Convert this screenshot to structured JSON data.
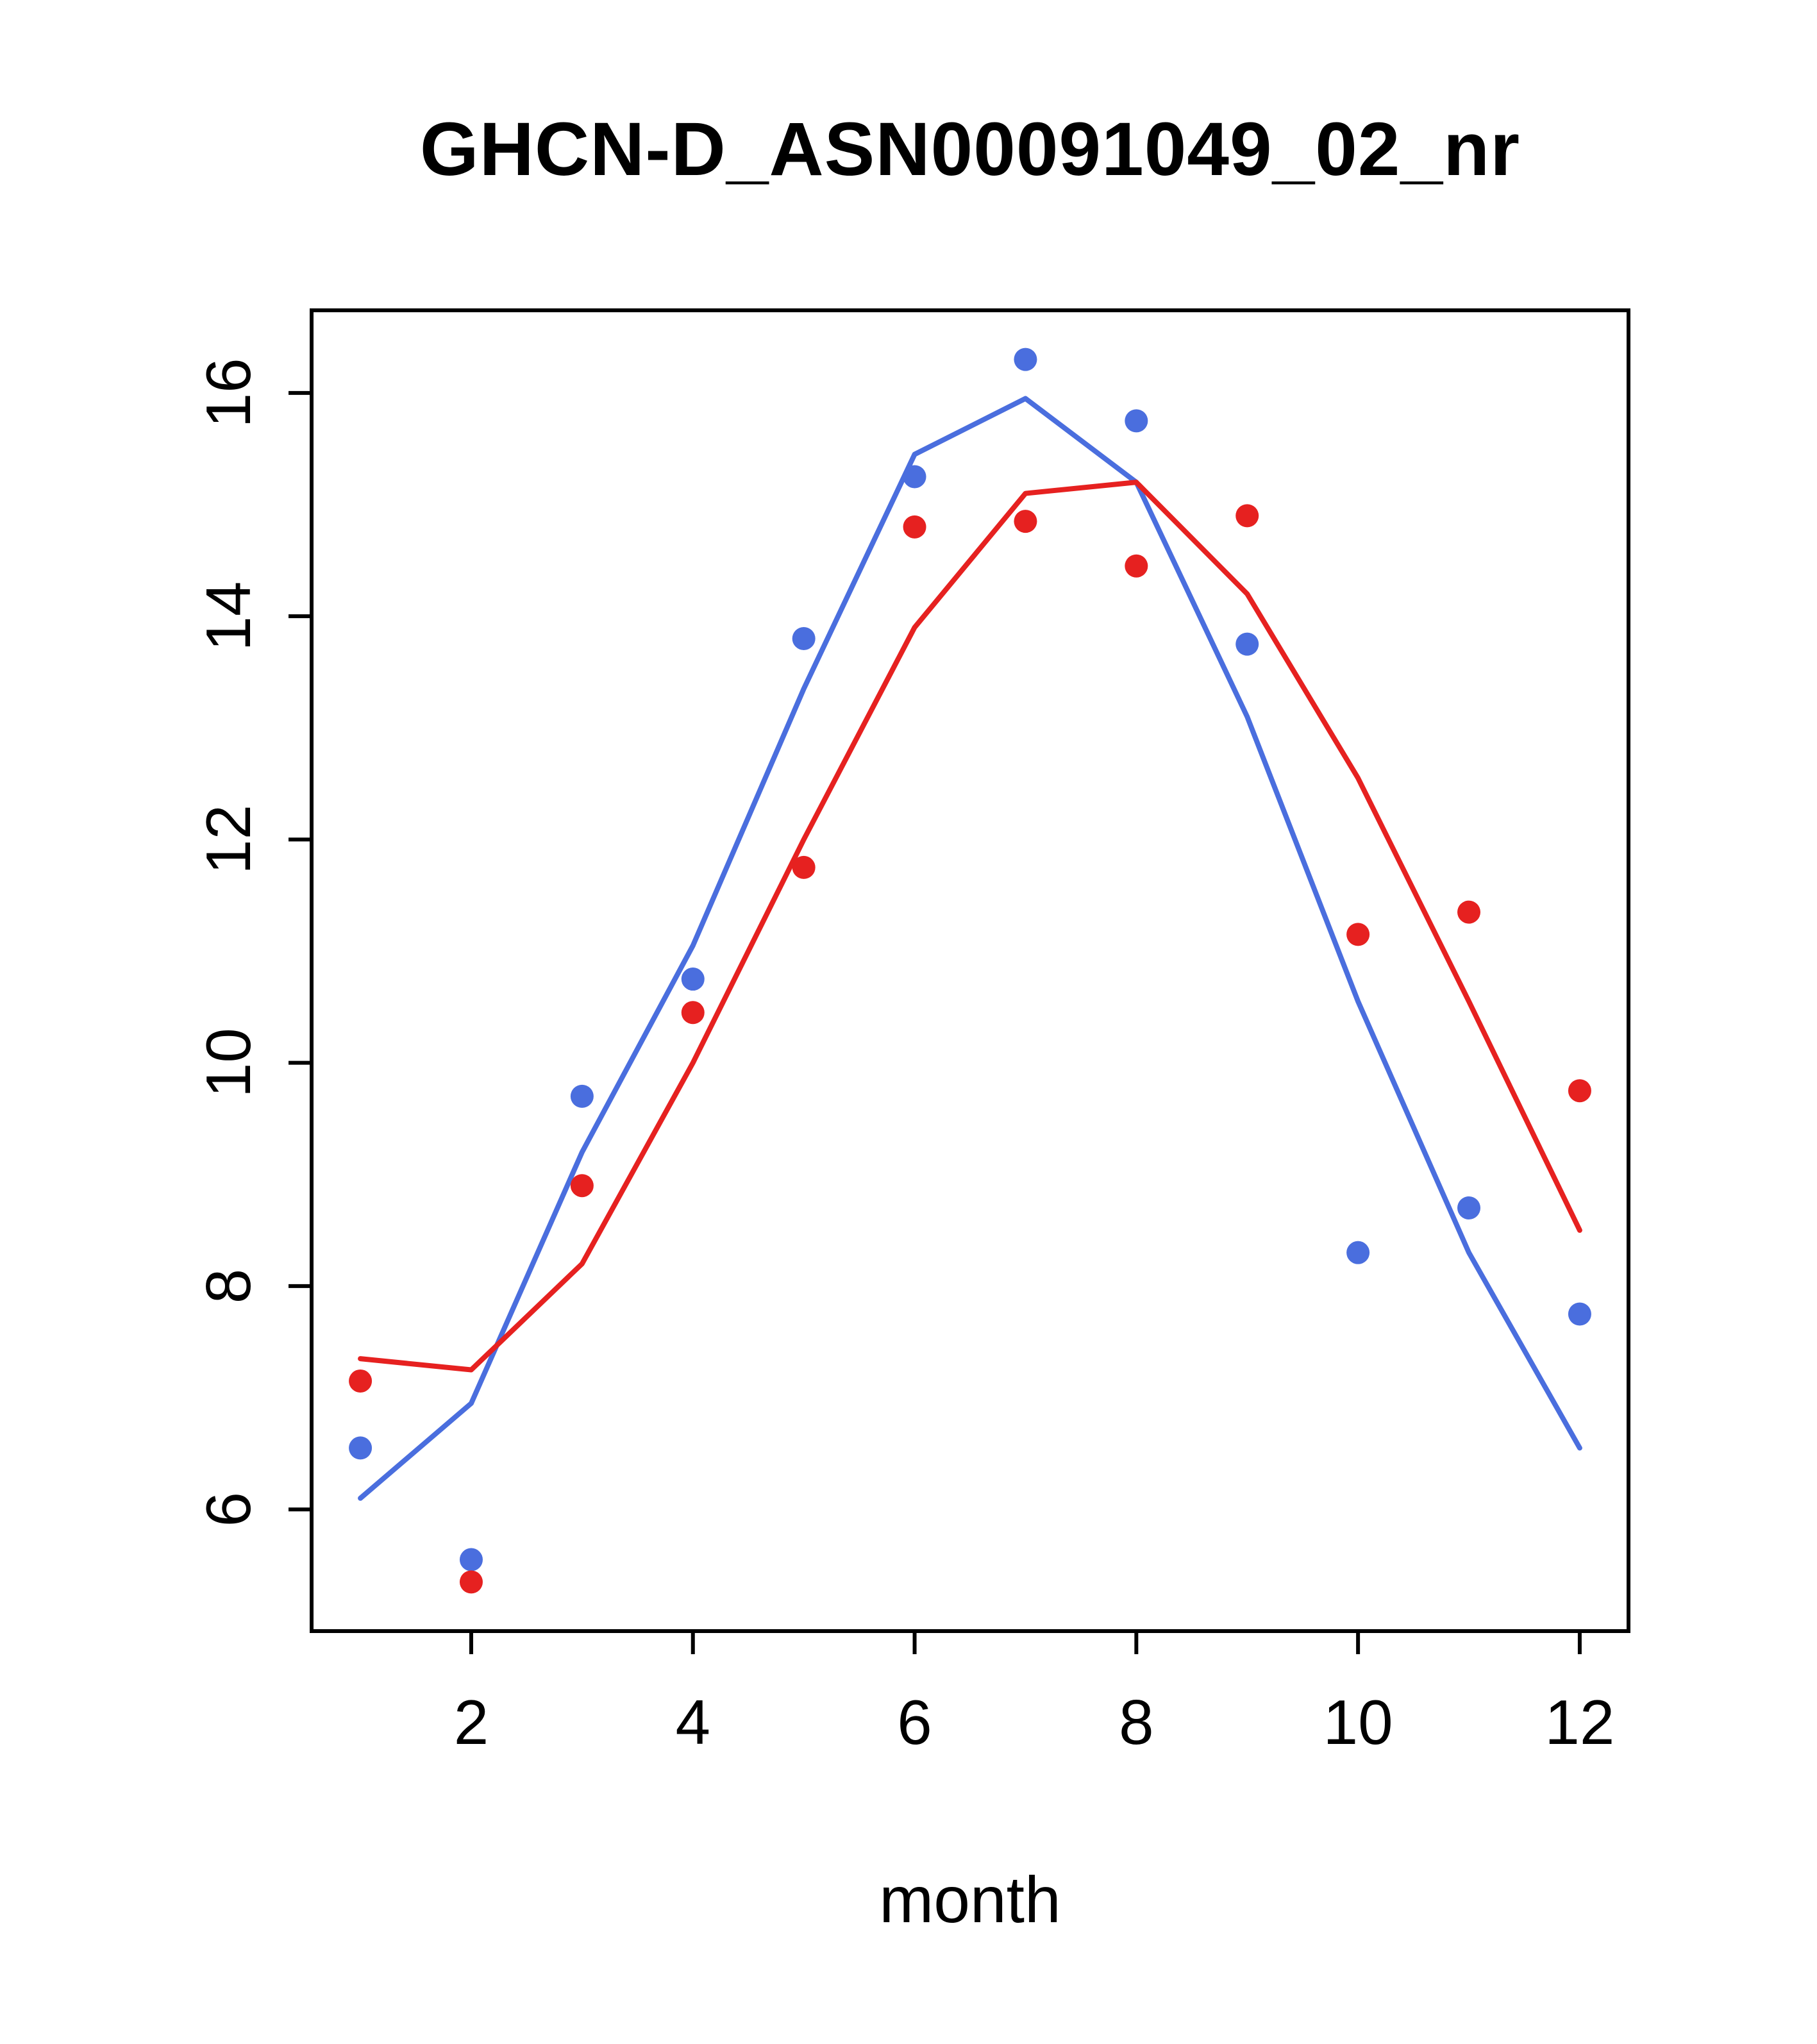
{
  "chart_data": {
    "type": "scatter",
    "title": "GHCN-D_ASN00091049_02_nr",
    "xlabel": "month",
    "ylabel": "",
    "xlim": [
      0.56,
      12.44
    ],
    "ylim": [
      4.91,
      16.74
    ],
    "x_ticks": [
      2,
      4,
      6,
      8,
      10,
      12
    ],
    "y_ticks": [
      6,
      8,
      10,
      12,
      14,
      16
    ],
    "x": [
      1,
      2,
      3,
      4,
      5,
      6,
      7,
      8,
      9,
      10,
      11,
      12
    ],
    "colors": {
      "blue": "#4a6ede",
      "red": "#e62120",
      "axis": "#000000"
    },
    "series": [
      {
        "name": "blue-line",
        "type": "line",
        "color": "#4a6ede",
        "values": [
          6.1,
          6.95,
          9.2,
          11.05,
          13.35,
          15.45,
          15.95,
          15.2,
          13.1,
          10.55,
          8.3,
          6.55
        ]
      },
      {
        "name": "red-line",
        "type": "line",
        "color": "#e62120",
        "values": [
          7.35,
          7.25,
          8.2,
          10.0,
          12.0,
          13.9,
          15.1,
          15.2,
          14.2,
          12.55,
          10.55,
          8.5
        ]
      },
      {
        "name": "blue-points",
        "type": "points",
        "color": "#4a6ede",
        "values": [
          6.55,
          5.55,
          9.7,
          10.75,
          13.8,
          15.25,
          16.3,
          15.75,
          13.75,
          8.3,
          8.7,
          7.75
        ]
      },
      {
        "name": "red-points",
        "type": "points",
        "color": "#e62120",
        "values": [
          7.15,
          5.35,
          8.9,
          10.45,
          11.75,
          14.8,
          14.85,
          14.45,
          14.9,
          11.15,
          11.35,
          9.75
        ]
      }
    ],
    "legend": null,
    "grid": false
  }
}
